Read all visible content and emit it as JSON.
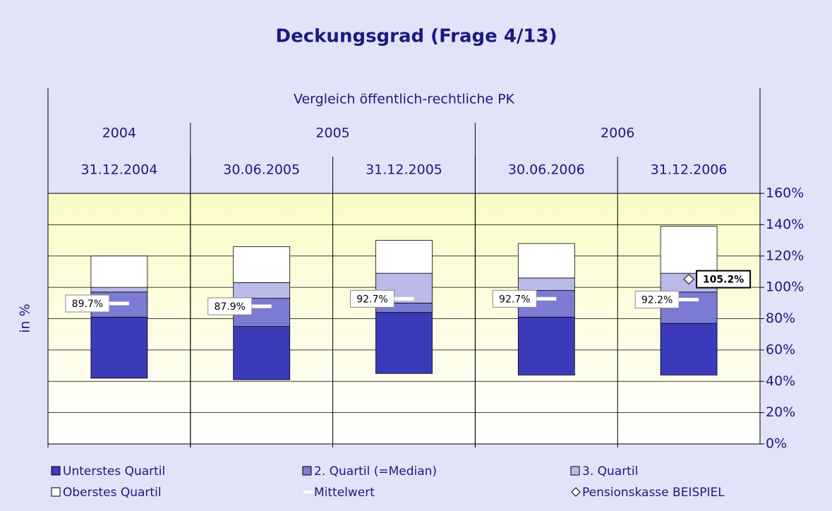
{
  "chart_data": {
    "type": "bar",
    "stacked": true,
    "title": "Deckungsgrad (Frage 4/13)",
    "group_label": "Vergleich öffentlich-rechtliche PK",
    "years": [
      "2004",
      "2005",
      "2006"
    ],
    "year_spans": [
      1,
      2,
      2
    ],
    "categories": [
      "31.12.2004",
      "30.06.2005",
      "31.12.2005",
      "30.06.2006",
      "31.12.2006"
    ],
    "y_label": "in %",
    "ylim": [
      0,
      160
    ],
    "yticks": [
      {
        "value": 0,
        "label": "0%"
      },
      {
        "value": 20,
        "label": "20%"
      },
      {
        "value": 40,
        "label": "40%"
      },
      {
        "value": 60,
        "label": "60%"
      },
      {
        "value": 80,
        "label": "80%"
      },
      {
        "value": 100,
        "label": "100%"
      },
      {
        "value": 120,
        "label": "120%"
      },
      {
        "value": 140,
        "label": "140%"
      },
      {
        "value": 160,
        "label": "160%"
      }
    ],
    "grid": true,
    "series": [
      {
        "color": "transparent",
        "values": [
          42,
          41,
          45,
          44,
          44
        ]
      },
      {
        "name": "Unterstes Quartil",
        "color": "#3b3bb9",
        "values": [
          39,
          34,
          39,
          37,
          33
        ]
      },
      {
        "name": "2. Quartil (=Median)",
        "color": "#7b7bd3",
        "values": [
          16,
          18,
          6,
          17,
          20
        ]
      },
      {
        "name": "3. Quartil",
        "color": "#babae9",
        "values": [
          3,
          10,
          19,
          8,
          12
        ]
      },
      {
        "name": "Oberstes Quartil",
        "color": "#ffffff",
        "values": [
          20,
          23,
          21,
          22,
          30
        ]
      }
    ],
    "markers": [
      {
        "name": "Mittelwert",
        "color": "#ffffff",
        "shape": "dash",
        "values": [
          89.7,
          87.9,
          92.7,
          92.7,
          92.2
        ],
        "value_labels": [
          "89.7%",
          "87.9%",
          "92.7%",
          "92.7%",
          "92.2%"
        ]
      },
      {
        "name": "Pensionskasse BEISPIEL",
        "color": "#ffffff",
        "shape": "diamond",
        "values": [
          null,
          null,
          null,
          null,
          105.2
        ],
        "value_labels": [
          null,
          null,
          null,
          null,
          "105.2%"
        ]
      }
    ]
  }
}
